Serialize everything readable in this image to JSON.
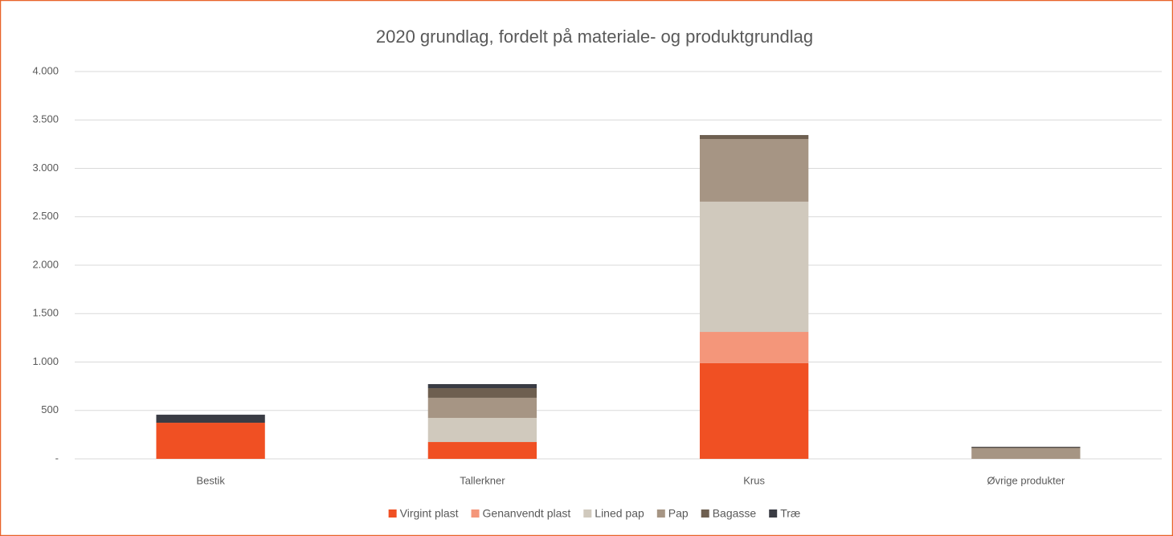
{
  "chart_data": {
    "type": "stacked_bar",
    "title": "2020 grundlag, fordelt på materiale- og produktgrundlag",
    "categories": [
      "Bestik",
      "Tallerkner",
      "Krus",
      "Øvrige produkter"
    ],
    "series": [
      {
        "name": "Virgint plast",
        "color": "#f05023",
        "values": [
          373,
          174,
          988,
          0
        ]
      },
      {
        "name": "Genanvendt plast",
        "color": "#f4967a",
        "values": [
          0,
          0,
          323,
          0
        ]
      },
      {
        "name": "Lined pap",
        "color": "#d0c9bd",
        "values": [
          0,
          249,
          1345,
          0
        ]
      },
      {
        "name": "Pap",
        "color": "#a69584",
        "values": [
          0,
          208,
          647,
          110
        ]
      },
      {
        "name": "Bagasse",
        "color": "#6e5f50",
        "values": [
          0,
          99,
          41,
          10
        ]
      },
      {
        "name": "Træ",
        "color": "#3a3c44",
        "values": [
          83,
          42,
          0,
          5
        ]
      }
    ],
    "ylim": [
      0,
      4000
    ],
    "yticks": [
      {
        "value": 0,
        "label": "-"
      },
      500,
      {
        "value": 1000,
        "label": "1.000"
      },
      {
        "value": 1500,
        "label": "1.500"
      },
      {
        "value": 2000,
        "label": "2.000"
      },
      {
        "value": 2500,
        "label": "2.500"
      },
      {
        "value": 3000,
        "label": "3.000"
      },
      {
        "value": 3500,
        "label": "3.500"
      },
      {
        "value": 4000,
        "label": "4.000"
      }
    ],
    "grid": true,
    "legend": "bottom"
  }
}
